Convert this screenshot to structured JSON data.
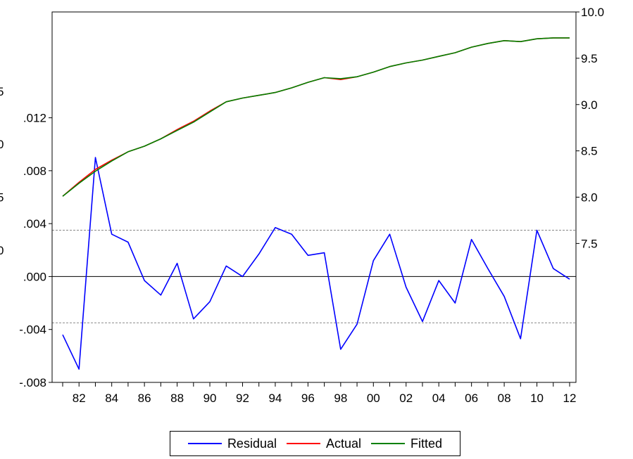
{
  "chart_data": {
    "type": "line",
    "x": [
      "81",
      "82",
      "83",
      "84",
      "85",
      "86",
      "87",
      "88",
      "89",
      "90",
      "91",
      "92",
      "93",
      "94",
      "95",
      "96",
      "97",
      "98",
      "99",
      "00",
      "01",
      "02",
      "03",
      "04",
      "05",
      "06",
      "07",
      "08",
      "09",
      "10",
      "11",
      "12"
    ],
    "x_tick_labels": [
      "82",
      "84",
      "86",
      "88",
      "90",
      "92",
      "94",
      "96",
      "98",
      "00",
      "02",
      "04",
      "06",
      "08",
      "10",
      "12"
    ],
    "left_axis": {
      "ylim": [
        -0.008,
        0.02
      ],
      "ticks": [
        -0.008,
        -0.004,
        0.0,
        0.004,
        0.008,
        0.012
      ],
      "tick_labels": [
        "-.008",
        "-.004",
        ".000",
        ".004",
        ".008",
        ".012"
      ],
      "partial_labels": [
        {
          "text": "5",
          "value": 0.014
        },
        {
          "text": "0",
          "value": 0.01
        },
        {
          "text": "5",
          "value": 0.006
        },
        {
          "text": "0",
          "value": 0.002
        }
      ]
    },
    "right_axis": {
      "ylim": [
        6.0,
        10.0
      ],
      "ticks": [
        7.5,
        8.0,
        8.5,
        9.0,
        9.5,
        10.0
      ],
      "tick_labels": [
        "7.5",
        "8.0",
        "8.5",
        "9.0",
        "9.5",
        "10.0"
      ]
    },
    "residual_bands": [
      0.0035,
      -0.0035
    ],
    "series": [
      {
        "name": "Residual",
        "axis": "left",
        "color": "#0000ff",
        "values": [
          -0.0044,
          -0.007,
          0.009,
          0.0032,
          0.0026,
          -0.0003,
          -0.0014,
          0.001,
          -0.0032,
          -0.0019,
          0.0008,
          0.0,
          0.0017,
          0.0037,
          0.0032,
          0.0016,
          0.0018,
          -0.0055,
          -0.0036,
          0.0012,
          0.0032,
          -0.0008,
          -0.0034,
          -0.0003,
          -0.002,
          0.0028,
          0.0006,
          -0.0015,
          -0.0047,
          0.0035,
          0.0006,
          -0.0002
        ]
      },
      {
        "name": "Actual",
        "axis": "right",
        "color": "#ff0000",
        "values": [
          8.01,
          8.16,
          8.3,
          8.4,
          8.49,
          8.55,
          8.63,
          8.73,
          8.82,
          8.93,
          9.03,
          9.07,
          9.1,
          9.13,
          9.18,
          9.24,
          9.29,
          9.27,
          9.3,
          9.35,
          9.41,
          9.45,
          9.48,
          9.52,
          9.56,
          9.62,
          9.66,
          9.69,
          9.68,
          9.71,
          9.72,
          9.72
        ]
      },
      {
        "name": "Fitted",
        "axis": "right",
        "color": "#008000",
        "values": [
          8.01,
          8.15,
          8.28,
          8.39,
          8.49,
          8.55,
          8.63,
          8.72,
          8.81,
          8.92,
          9.03,
          9.07,
          9.1,
          9.13,
          9.18,
          9.24,
          9.29,
          9.28,
          9.3,
          9.35,
          9.41,
          9.45,
          9.48,
          9.52,
          9.56,
          9.62,
          9.66,
          9.69,
          9.68,
          9.71,
          9.72,
          9.72
        ]
      }
    ],
    "grid": false,
    "legend_position": "bottom-center"
  },
  "legend": {
    "items": [
      {
        "label": "Residual",
        "color": "#0000ff"
      },
      {
        "label": "Actual",
        "color": "#ff0000"
      },
      {
        "label": "Fitted",
        "color": "#008000"
      }
    ]
  }
}
